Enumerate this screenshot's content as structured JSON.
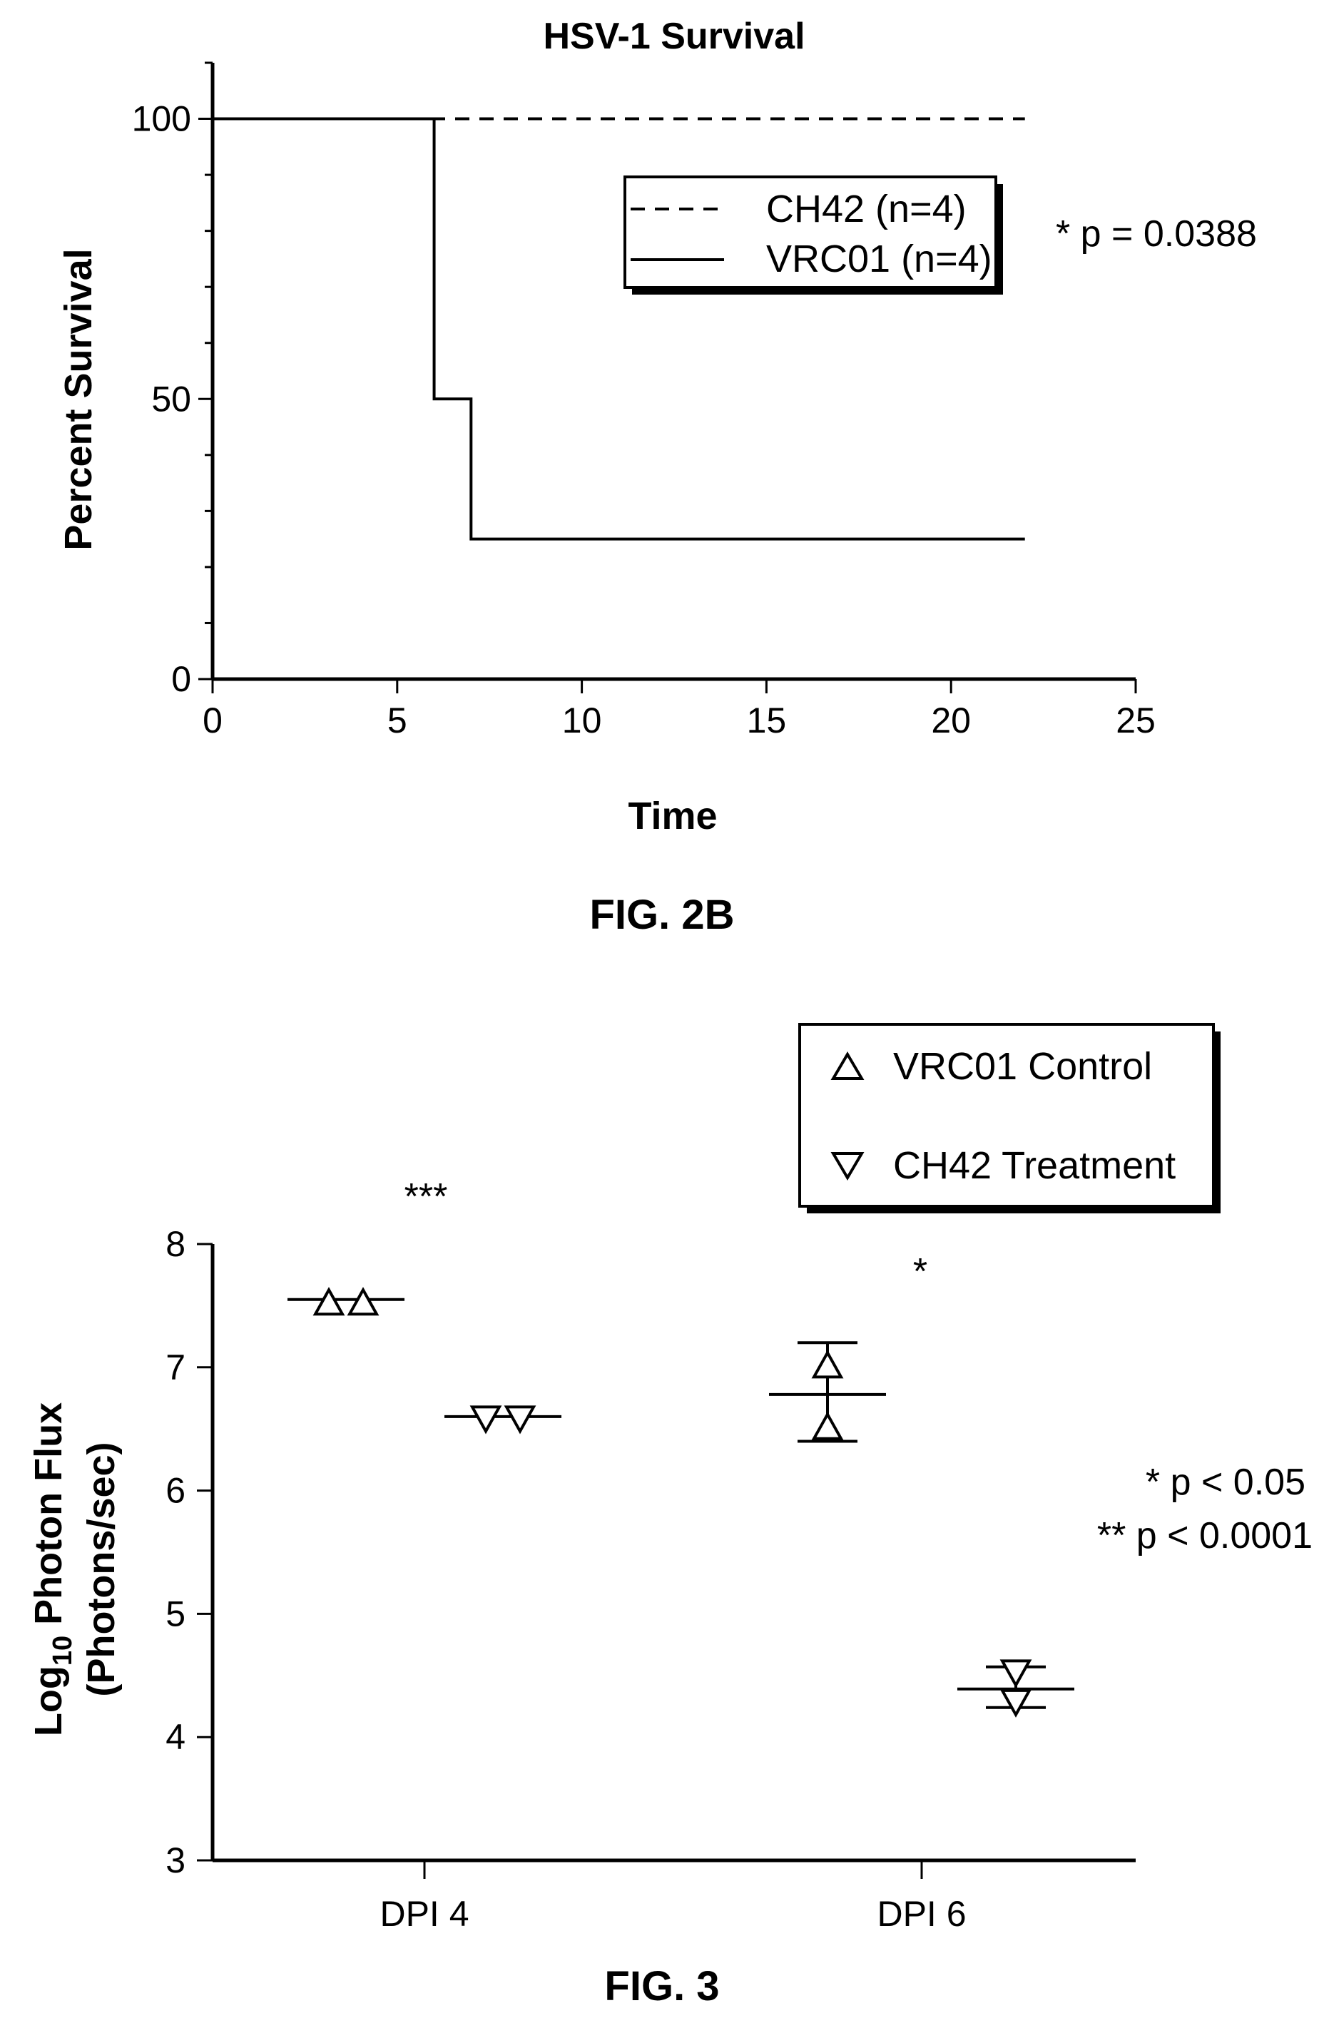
{
  "figures": [
    {
      "caption": "FIG. 2B"
    },
    {
      "caption": "FIG. 3"
    }
  ],
  "chart_data": [
    {
      "type": "line",
      "subtype": "step",
      "title": "HSV-1 Survival",
      "xlabel": "Time",
      "ylabel": "Percent Survival",
      "xlim": [
        0,
        25
      ],
      "ylim": [
        0,
        110
      ],
      "xticks": [
        "0",
        "5",
        "10",
        "15",
        "20",
        "25"
      ],
      "yticks": [
        "0",
        "50",
        "100"
      ],
      "annotation": "* p = 0.0388",
      "legend_position": "upper-right, inside plot",
      "series": [
        {
          "name": "CH42 (n=4)",
          "style": "dashed",
          "x": [
            0,
            22
          ],
          "y": [
            100,
            100
          ]
        },
        {
          "name": "VRC01 (n=4)",
          "style": "solid",
          "x": [
            0,
            6,
            6,
            7,
            7,
            22
          ],
          "y": [
            100,
            100,
            50,
            50,
            25,
            25
          ]
        }
      ]
    },
    {
      "type": "scatter",
      "ylabel_main": "Log",
      "ylabel_sub": "10",
      "ylabel_rest": " Photon Flux",
      "ylabel_line2": "(Photons/sec)",
      "ylim": [
        3,
        8
      ],
      "yticks": [
        "3",
        "4",
        "5",
        "6",
        "7",
        "8"
      ],
      "categories": [
        "DPI 4",
        "DPI 6"
      ],
      "legend_position": "top-right, outside plot",
      "series": [
        {
          "name": "VRC01 Control",
          "marker": "triangle-up",
          "points": [
            {
              "category": "DPI 4",
              "y": 7.53
            },
            {
              "category": "DPI 4",
              "y": 7.53
            },
            {
              "category": "DPI 6",
              "y": 7.02
            },
            {
              "category": "DPI 6",
              "y": 6.52
            }
          ],
          "means": [
            {
              "category": "DPI 4",
              "y": 7.55
            },
            {
              "category": "DPI 6",
              "y": 6.78
            }
          ],
          "error_bars": [
            {
              "category": "DPI 6",
              "low": 6.4,
              "high": 7.2
            }
          ]
        },
        {
          "name": "CH42 Treatment",
          "marker": "triangle-down",
          "points": [
            {
              "category": "DPI 4",
              "y": 6.58
            },
            {
              "category": "DPI 4",
              "y": 6.58
            },
            {
              "category": "DPI 6",
              "y": 4.52
            },
            {
              "category": "DPI 6",
              "y": 4.28
            }
          ],
          "means": [
            {
              "category": "DPI 4",
              "y": 6.6
            },
            {
              "category": "DPI 6",
              "y": 4.39
            }
          ],
          "error_bars": [
            {
              "category": "DPI 6",
              "low": 4.24,
              "high": 4.57
            }
          ]
        }
      ],
      "significance_marks": [
        {
          "label": "***",
          "category": "DPI 4"
        },
        {
          "label": "*",
          "category": "DPI 6"
        }
      ],
      "annotations": [
        "* p < 0.05",
        "** p < 0.0001"
      ]
    }
  ]
}
